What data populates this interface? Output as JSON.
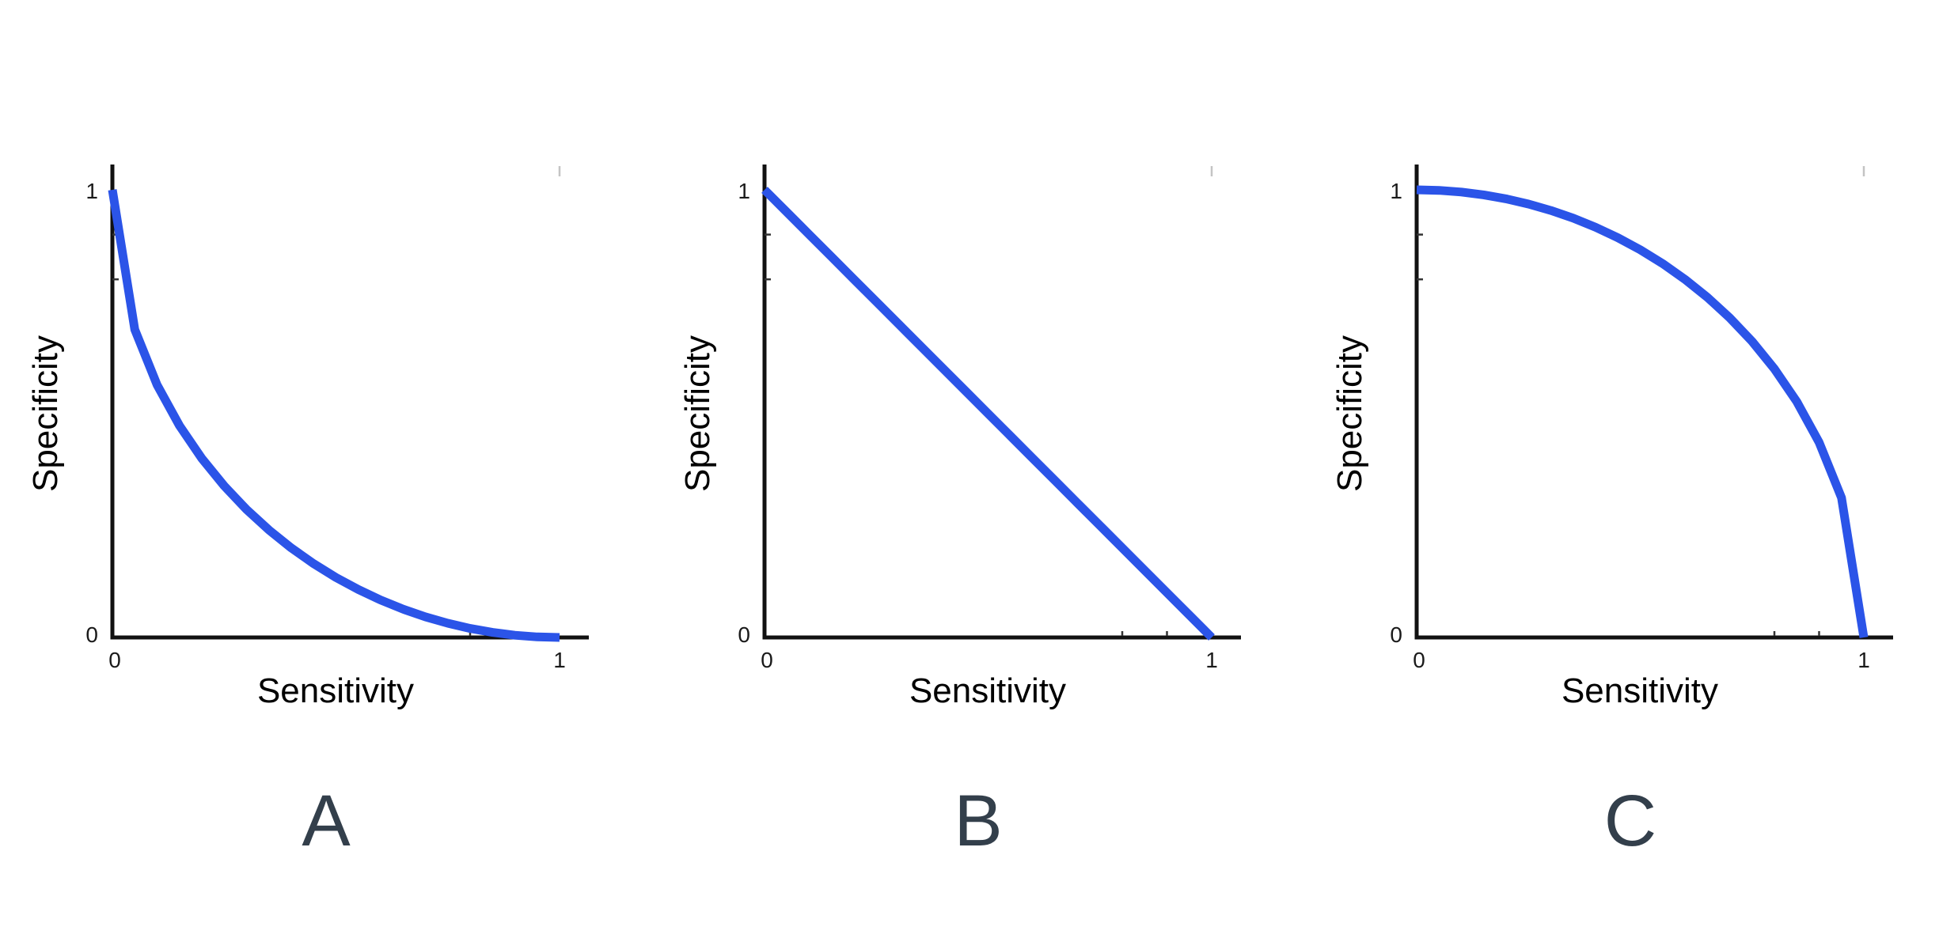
{
  "colors": {
    "curve": "#2B54E8",
    "axis": "#111111",
    "tick_text": "#1a1a1a",
    "panel_letter": "#333F4B",
    "minor_tick": "#333333",
    "ghost_tick": "#c4c4c4"
  },
  "panels": [
    {
      "letter": "A",
      "xlabel": "Sensitivity",
      "ylabel": "Specificity",
      "xtick_left": "0",
      "xtick_right": "1",
      "ytick_bottom": "0",
      "ytick_top": "1"
    },
    {
      "letter": "B",
      "xlabel": "Sensitivity",
      "ylabel": "Specificity",
      "xtick_left": "0",
      "xtick_right": "1",
      "ytick_bottom": "0",
      "ytick_top": "1"
    },
    {
      "letter": "C",
      "xlabel": "Sensitivity",
      "ylabel": "Specificity",
      "xtick_left": "0",
      "xtick_right": "1",
      "ytick_bottom": "0",
      "ytick_top": "1"
    }
  ],
  "chart_data": [
    {
      "type": "line",
      "panel": "A",
      "title": "",
      "xlabel": "Sensitivity",
      "ylabel": "Specificity",
      "xlim": [
        0,
        1
      ],
      "ylim": [
        0,
        1
      ],
      "xticks": [
        0,
        1
      ],
      "yticks": [
        0,
        1
      ],
      "minor_xticks": [
        0.8,
        0.9
      ],
      "minor_yticks": [
        0.8,
        0.9
      ],
      "grid": false,
      "legend": null,
      "shape": "concave curve bowed toward the origin, from (0,1) to (1,0)",
      "x": [
        0,
        0.05,
        0.1,
        0.15,
        0.2,
        0.25,
        0.3,
        0.35,
        0.4,
        0.45,
        0.5,
        0.55,
        0.6,
        0.65,
        0.7,
        0.75,
        0.8,
        0.85,
        0.9,
        0.95,
        1
      ],
      "y": [
        1,
        0.6878,
        0.5641,
        0.4732,
        0.4,
        0.3386,
        0.2859,
        0.2401,
        0.2,
        0.1648,
        0.134,
        0.107,
        0.0835,
        0.0632,
        0.0461,
        0.0318,
        0.0202,
        0.0113,
        0.005,
        0.0013,
        0
      ]
    },
    {
      "type": "line",
      "panel": "B",
      "title": "",
      "xlabel": "Sensitivity",
      "ylabel": "Specificity",
      "xlim": [
        0,
        1
      ],
      "ylim": [
        0,
        1
      ],
      "xticks": [
        0,
        1
      ],
      "yticks": [
        0,
        1
      ],
      "minor_xticks": [
        0.8,
        0.9
      ],
      "minor_yticks": [
        0.8,
        0.9
      ],
      "grid": false,
      "legend": null,
      "shape": "straight diagonal line from (0,1) to (1,0)",
      "x": [
        0,
        0.05,
        0.1,
        0.15,
        0.2,
        0.25,
        0.3,
        0.35,
        0.4,
        0.45,
        0.5,
        0.55,
        0.6,
        0.65,
        0.7,
        0.75,
        0.8,
        0.85,
        0.9,
        0.95,
        1
      ],
      "y": [
        1,
        0.95,
        0.9,
        0.85,
        0.8,
        0.75,
        0.7,
        0.65,
        0.6,
        0.55,
        0.5,
        0.45,
        0.4,
        0.35,
        0.3,
        0.25,
        0.2,
        0.15,
        0.1,
        0.05,
        0
      ]
    },
    {
      "type": "line",
      "panel": "C",
      "title": "",
      "xlabel": "Sensitivity",
      "ylabel": "Specificity",
      "xlim": [
        0,
        1
      ],
      "ylim": [
        0,
        1
      ],
      "xticks": [
        0,
        1
      ],
      "yticks": [
        0,
        1
      ],
      "minor_xticks": [
        0.8,
        0.9
      ],
      "minor_yticks": [
        0.8,
        0.9
      ],
      "grid": false,
      "legend": null,
      "shape": "convex quarter-circle curve bulging toward the top-right, from (0,1) to (1,0)",
      "x": [
        0,
        0.05,
        0.1,
        0.15,
        0.2,
        0.25,
        0.3,
        0.35,
        0.4,
        0.45,
        0.5,
        0.55,
        0.6,
        0.65,
        0.7,
        0.75,
        0.8,
        0.85,
        0.9,
        0.95,
        1
      ],
      "y": [
        1,
        0.9987,
        0.995,
        0.9887,
        0.9798,
        0.9682,
        0.9539,
        0.9367,
        0.9165,
        0.893,
        0.866,
        0.8352,
        0.8,
        0.7599,
        0.7141,
        0.6614,
        0.6,
        0.5268,
        0.4359,
        0.3122,
        0
      ]
    }
  ]
}
